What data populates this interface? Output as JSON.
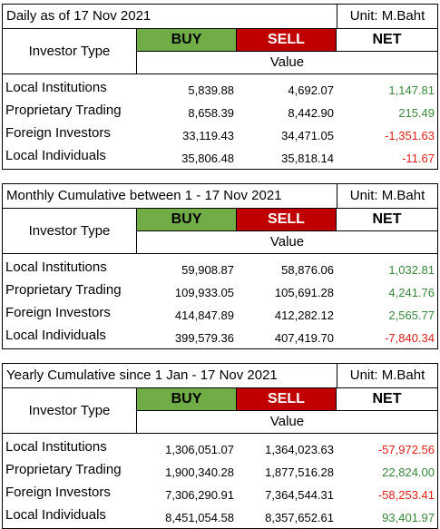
{
  "headers": {
    "investor_type": "Investor Type",
    "buy": "BUY",
    "sell": "SELL",
    "net": "NET",
    "value": "Value"
  },
  "colors": {
    "buy_bg": "#70ad47",
    "sell_bg": "#c00000",
    "positive": "#38873a",
    "negative": "#e0201a"
  },
  "tables": [
    {
      "title": "Daily as of 17 Nov 2021",
      "unit": "Unit: M.Baht",
      "rows": [
        {
          "name": "Local Institutions",
          "buy": "5,839.88",
          "sell": "4,692.07",
          "net": "1,147.81",
          "sign": "pos"
        },
        {
          "name": "Proprietary Trading",
          "buy": "8,658.39",
          "sell": "8,442.90",
          "net": "215.49",
          "sign": "pos"
        },
        {
          "name": "Foreign Investors",
          "buy": "33,119.43",
          "sell": "34,471.05",
          "net": "-1,351.63",
          "sign": "neg"
        },
        {
          "name": "Local Individuals",
          "buy": "35,806.48",
          "sell": "35,818.14",
          "net": "-11.67",
          "sign": "neg"
        }
      ]
    },
    {
      "title": "Monthly Cumulative between 1 - 17 Nov 2021",
      "unit": "Unit: M.Baht",
      "rows": [
        {
          "name": "Local Institutions",
          "buy": "59,908.87",
          "sell": "58,876.06",
          "net": "1,032.81",
          "sign": "pos"
        },
        {
          "name": "Proprietary Trading",
          "buy": "109,933.05",
          "sell": "105,691.28",
          "net": "4,241.76",
          "sign": "pos"
        },
        {
          "name": "Foreign Investors",
          "buy": "414,847.89",
          "sell": "412,282.12",
          "net": "2,565.77",
          "sign": "pos"
        },
        {
          "name": "Local Individuals",
          "buy": "399,579.36",
          "sell": "407,419.70",
          "net": "-7,840.34",
          "sign": "neg"
        }
      ]
    },
    {
      "title": "Yearly Cumulative since 1 Jan - 17 Nov 2021",
      "unit": "Unit: M.Baht",
      "rows": [
        {
          "name": "Local Institutions",
          "buy": "1,306,051.07",
          "sell": "1,364,023.63",
          "net": "-57,972.56",
          "sign": "neg"
        },
        {
          "name": "Proprietary Trading",
          "buy": "1,900,340.28",
          "sell": "1,877,516.28",
          "net": "22,824.00",
          "sign": "pos"
        },
        {
          "name": "Foreign Investors",
          "buy": "7,306,290.91",
          "sell": "7,364,544.31",
          "net": "-58,253.41",
          "sign": "neg"
        },
        {
          "name": "Local Individuals",
          "buy": "8,451,054.58",
          "sell": "8,357,652.61",
          "net": "93,401.97",
          "sign": "pos"
        }
      ]
    }
  ]
}
